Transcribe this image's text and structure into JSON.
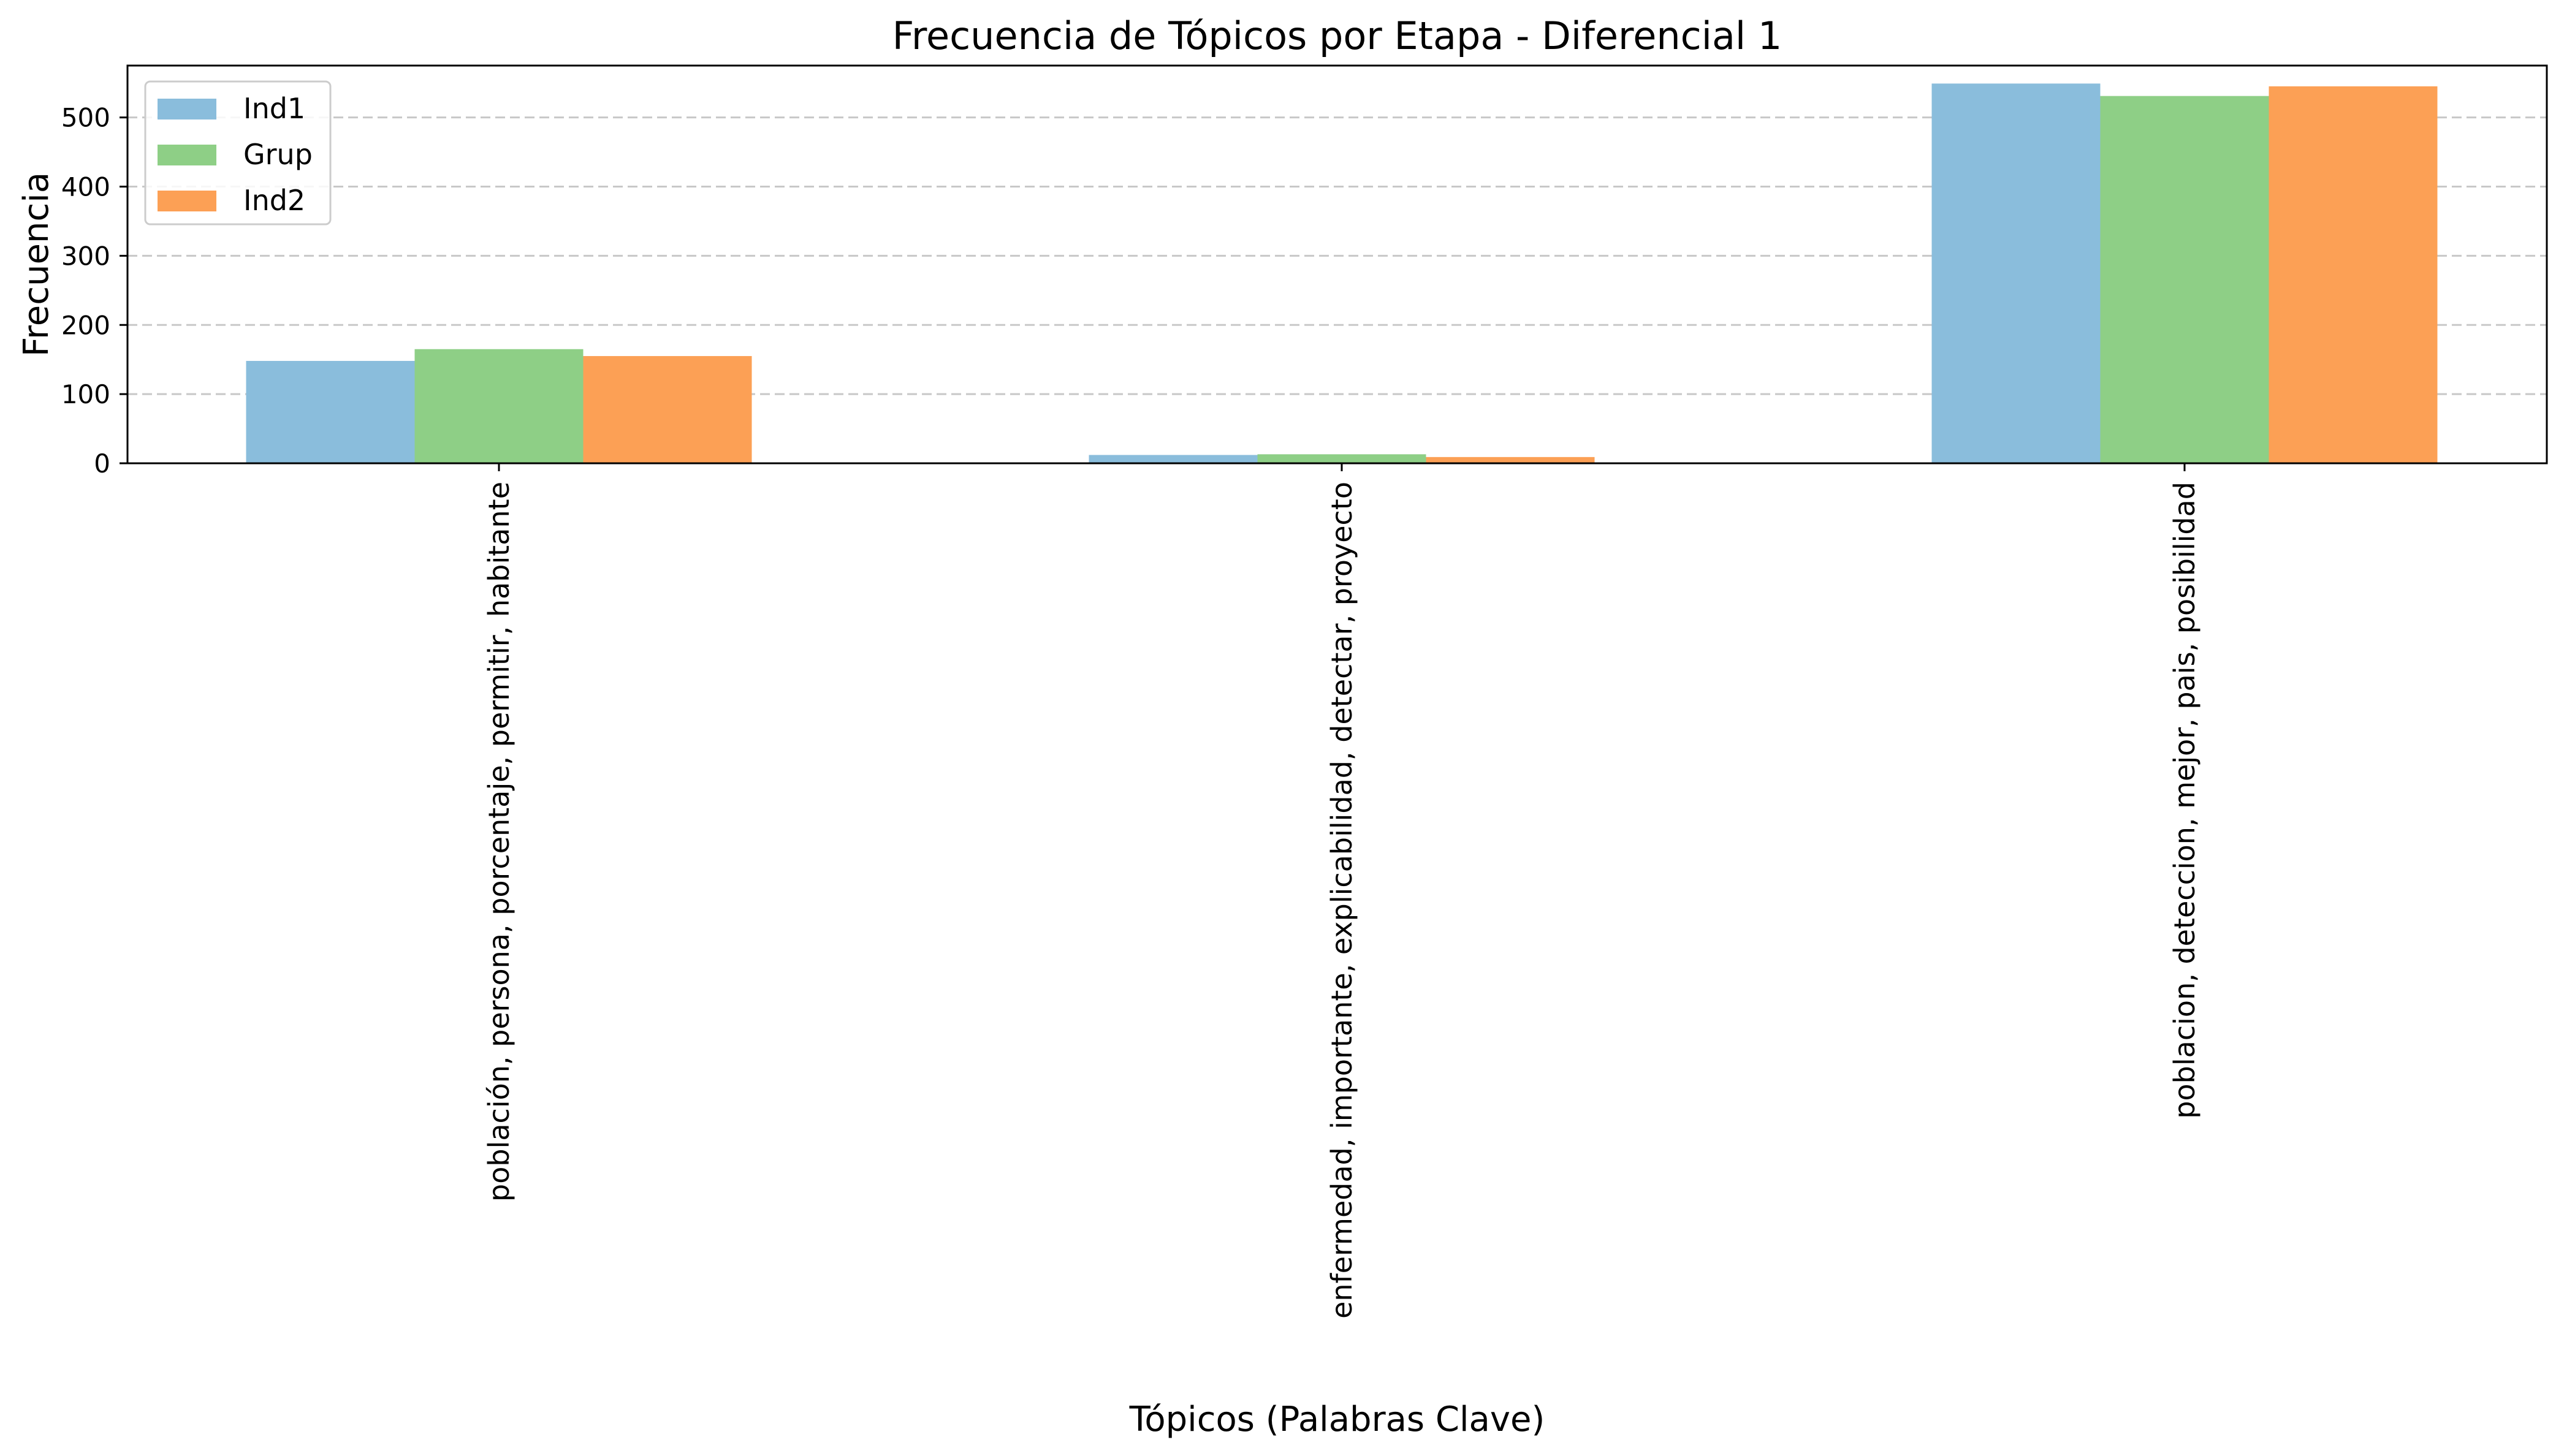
{
  "chart_data": {
    "type": "bar",
    "title": "Frecuencia de Tópicos por Etapa - Diferencial 1",
    "xlabel": "Tópicos (Palabras Clave)",
    "ylabel": "Frecuencia",
    "categories": [
      "población, persona, porcentaje, permitir, habitante",
      "enfermedad, importante, explicabilidad, detectar, proyecto",
      "poblacion, deteccion, mejor, pais, posibilidad"
    ],
    "series": [
      {
        "name": "Ind1",
        "color": "#8abddc",
        "values": [
          148,
          12,
          549
        ]
      },
      {
        "name": "Grup",
        "color": "#8ecf86",
        "values": [
          165,
          13,
          531
        ]
      },
      {
        "name": "Ind2",
        "color": "#fca055",
        "values": [
          155,
          9,
          545
        ]
      }
    ],
    "ylim": [
      0,
      575
    ],
    "yticks": [
      0,
      100,
      200,
      300,
      400,
      500
    ],
    "grid": "y-dashed",
    "legend_position": "top-left"
  }
}
